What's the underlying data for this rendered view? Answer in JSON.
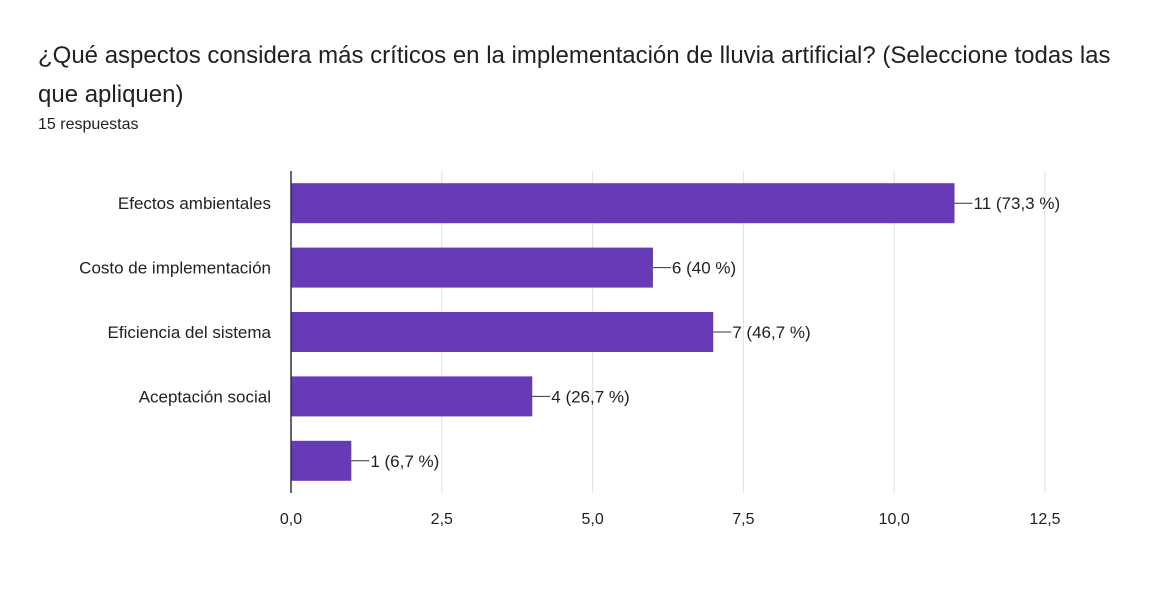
{
  "form_summary": {
    "question": "¿Qué aspectos considera más críticos en la implementación de lluvia artificial? (Seleccione todas las que apliquen)",
    "response_count": "15 respuestas"
  },
  "colors": {
    "bar": "#673ab7",
    "grid": "#e0e0e0",
    "axis": "#333333",
    "text": "#202124"
  },
  "chart_data": {
    "type": "bar",
    "orientation": "horizontal",
    "categories": [
      "Efectos ambientales",
      "Costo de implementación",
      "Eficiencia del sistema",
      "Aceptación social",
      ""
    ],
    "values": [
      11,
      6,
      7,
      4,
      1
    ],
    "data_labels": [
      "11 (73,3 %)",
      "6 (40 %)",
      "7 (46,7 %)",
      "4 (26,7 %)",
      "1 (6,7 %)"
    ],
    "xlim": [
      0,
      12.5
    ],
    "xticks": [
      0,
      2.5,
      5,
      7.5,
      10,
      12.5
    ],
    "xtick_labels": [
      "0,0",
      "2,5",
      "5,0",
      "7,5",
      "10,0",
      "12,5"
    ],
    "grid": true,
    "legend": "none"
  }
}
